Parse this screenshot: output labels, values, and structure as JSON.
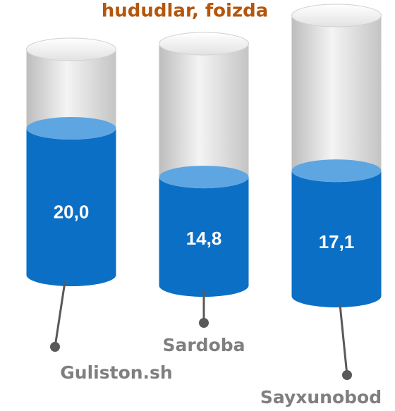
{
  "chart_data": {
    "type": "cylinder",
    "title": "hududlar, foizda",
    "categories": [
      "Guliston.sh",
      "Sardoba",
      "Sayxunobod"
    ],
    "values": [
      20.0,
      14.8,
      17.1
    ],
    "value_labels": [
      "20,0",
      "14,8",
      "17,1"
    ],
    "color": "#0b6fc6"
  }
}
